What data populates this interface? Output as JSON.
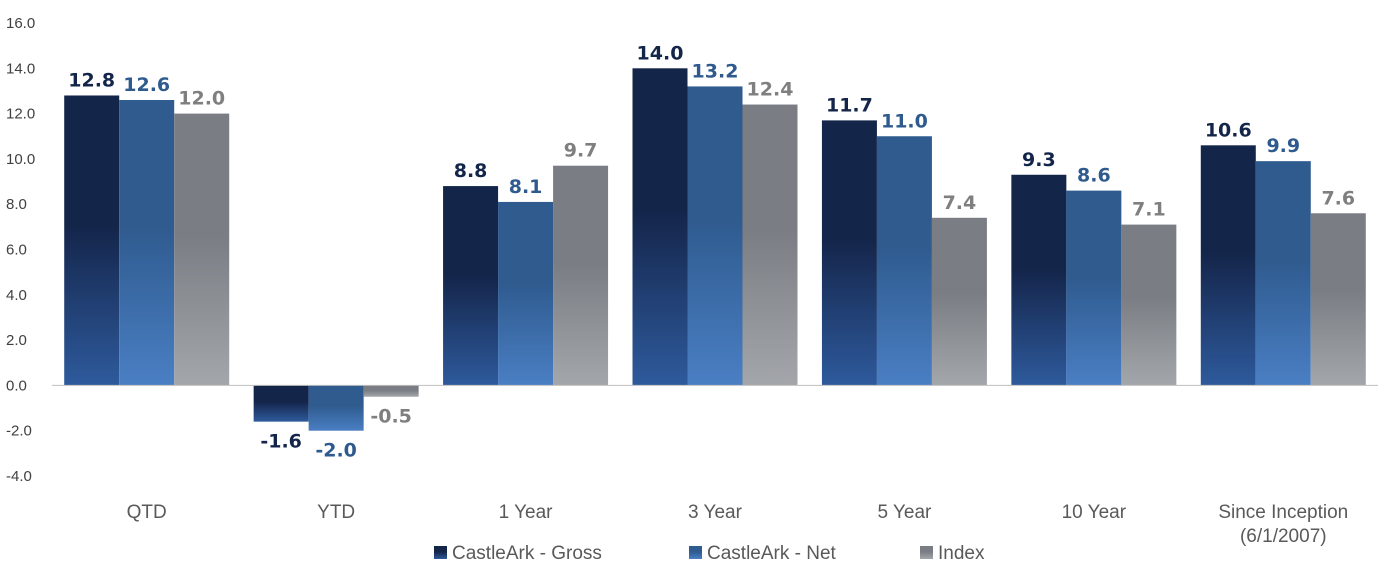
{
  "chart_data": {
    "type": "bar",
    "categories": [
      "QTD",
      "YTD",
      "1 Year",
      "3 Year",
      "5 Year",
      "10 Year",
      "Since Inception (6/1/2007)"
    ],
    "category_lines": [
      [
        "QTD"
      ],
      [
        "YTD"
      ],
      [
        "1 Year"
      ],
      [
        "3 Year"
      ],
      [
        "5 Year"
      ],
      [
        "10 Year"
      ],
      [
        "Since Inception",
        "(6/1/2007)"
      ]
    ],
    "series": [
      {
        "name": "CastleArk - Gross",
        "values": [
          12.8,
          -1.6,
          8.8,
          14.0,
          11.7,
          9.3,
          10.6
        ],
        "color_top": "#14254a",
        "color_bottom": "#2e5a9c",
        "label_color": "#14254a"
      },
      {
        "name": "CastleArk - Net",
        "values": [
          12.6,
          -2.0,
          8.1,
          13.2,
          11.0,
          8.6,
          9.9
        ],
        "color_top": "#2f5b8f",
        "color_bottom": "#4a7fc4",
        "label_color": "#2e5a8e"
      },
      {
        "name": "Index",
        "values": [
          12.0,
          -0.5,
          9.7,
          12.4,
          7.4,
          7.1,
          7.6
        ],
        "color_top": "#7a7e84",
        "color_bottom": "#a3a6aa",
        "label_color": "#7f7f7f"
      }
    ],
    "ylim": [
      -4.0,
      16.0
    ],
    "yticks": [
      "-4.0",
      "-2.0",
      "0.0",
      "2.0",
      "4.0",
      "6.0",
      "8.0",
      "10.0",
      "12.0",
      "14.0",
      "16.0"
    ],
    "grid": false,
    "legend_position": "bottom",
    "title": "",
    "xlabel": "",
    "ylabel": ""
  }
}
